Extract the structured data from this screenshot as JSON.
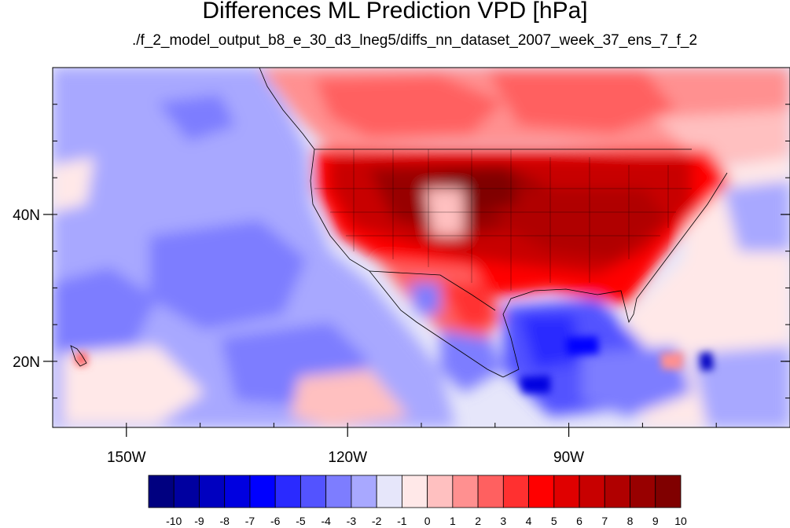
{
  "title": "Differences ML Prediction VPD [hPa]",
  "subtitle": "./f_2_model_output_b8_e_30_d3_lneg5/diffs_nn_dataset_2007_week_37_ens_7_f_2",
  "map": {
    "lon_range": [
      -160,
      -60
    ],
    "lat_range": [
      11,
      60
    ],
    "x_ticks": [
      {
        "lon": -150,
        "label": "150W"
      },
      {
        "lon": -120,
        "label": "120W"
      },
      {
        "lon": -90,
        "label": "90W"
      }
    ],
    "y_ticks": [
      {
        "lat": 40,
        "label": "40N"
      },
      {
        "lat": 20,
        "label": "20N"
      }
    ],
    "minor_lon_step": 10,
    "minor_lat_step": 5
  },
  "colorbar": {
    "labels": [
      "-10",
      "-9",
      "-8",
      "-7",
      "-6",
      "-5",
      "-4",
      "-3",
      "-2",
      "-1",
      "0",
      "1",
      "2",
      "3",
      "4",
      "5",
      "6",
      "7",
      "8",
      "9",
      "10"
    ],
    "colors": [
      "#000080",
      "#0000a0",
      "#0000c0",
      "#0000e0",
      "#0000ff",
      "#2a2aff",
      "#5353ff",
      "#7d7dff",
      "#a8a8ff",
      "#e6e6fa",
      "#ffe8e8",
      "#ffc0c0",
      "#ff9090",
      "#ff6060",
      "#ff3030",
      "#ff0000",
      "#e00000",
      "#c80000",
      "#b00000",
      "#980000",
      "#800000"
    ]
  }
}
